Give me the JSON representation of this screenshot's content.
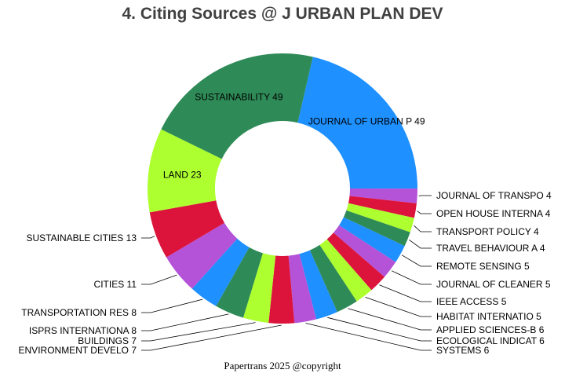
{
  "chart_data": {
    "type": "pie",
    "donut": true,
    "title": "4. Citing Sources @ J URBAN PLAN DEV",
    "slices": [
      {
        "label": "JOURNAL OF URBAN P",
        "value": 49,
        "color": "#1e90ff"
      },
      {
        "label": "JOURNAL OF TRANSPO",
        "value": 4,
        "color": "#b452d8"
      },
      {
        "label": "OPEN HOUSE INTERNA",
        "value": 4,
        "color": "#dc143c"
      },
      {
        "label": "TRANSPORT POLICY",
        "value": 4,
        "color": "#adff2f"
      },
      {
        "label": "TRAVEL BEHAVIOUR A",
        "value": 4,
        "color": "#2e8b57"
      },
      {
        "label": "REMOTE SENSING",
        "value": 5,
        "color": "#1e90ff"
      },
      {
        "label": "JOURNAL OF CLEANER",
        "value": 5,
        "color": "#b452d8"
      },
      {
        "label": "IEEE ACCESS",
        "value": 5,
        "color": "#dc143c"
      },
      {
        "label": "HABITAT INTERNATIO",
        "value": 5,
        "color": "#adff2f"
      },
      {
        "label": "APPLIED SCIENCES-B",
        "value": 6,
        "color": "#2e8b57"
      },
      {
        "label": "ECOLOGICAL INDICAT",
        "value": 6,
        "color": "#1e90ff"
      },
      {
        "label": "SYSTEMS",
        "value": 6,
        "color": "#b452d8"
      },
      {
        "label": "ENVIRONMENT DEVELO",
        "value": 7,
        "color": "#dc143c"
      },
      {
        "label": "BUILDINGS",
        "value": 7,
        "color": "#adff2f"
      },
      {
        "label": "ISPRS INTERNATIONA",
        "value": 8,
        "color": "#2e8b57"
      },
      {
        "label": "TRANSPORTATION RES",
        "value": 8,
        "color": "#1e90ff"
      },
      {
        "label": "CITIES",
        "value": 11,
        "color": "#b452d8"
      },
      {
        "label": "SUSTAINABLE CITIES",
        "value": 13,
        "color": "#dc143c"
      },
      {
        "label": "LAND",
        "value": 23,
        "color": "#adff2f"
      },
      {
        "label": "SUSTAINABILITY",
        "value": 49,
        "color": "#2e8b57"
      }
    ],
    "legend": "none"
  },
  "footer": "Papertrans 2025 @copyright"
}
